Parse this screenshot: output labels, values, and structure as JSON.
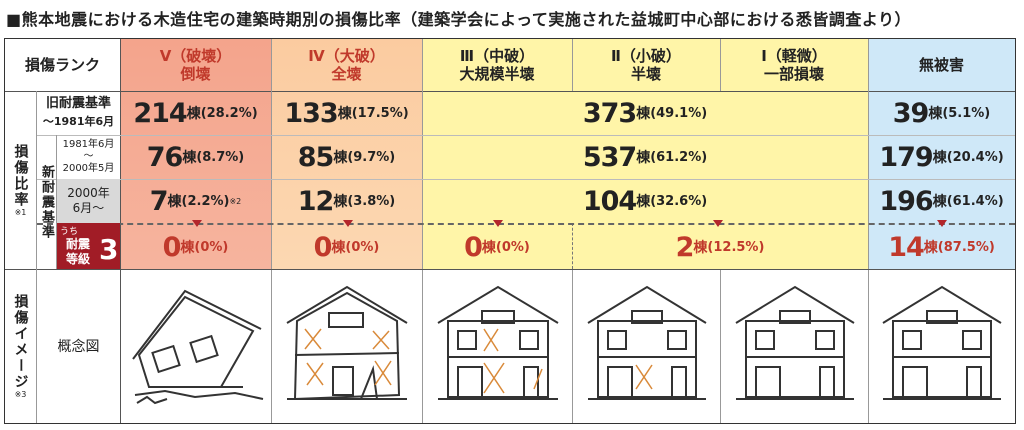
{
  "title": "■熊本地震における木造住宅の建築時期別の損傷比率（建築学会によって実施された益城町中心部における悉皆調査より）",
  "colors": {
    "rank5": "#f4a790",
    "rank4": "#fbd0a5",
    "rank3": "#fff5a8",
    "none": "#cfe8f8",
    "era2000": "#d9d9d9",
    "grade3": "#a11c26"
  },
  "header": {
    "rank_label": "損傷ランク",
    "r5_line1": "Ⅴ（破壊）",
    "r5_line2": "倒壊",
    "r4_line1": "Ⅳ（大破）",
    "r4_line2": "全壊",
    "r3_line1": "Ⅲ（中破）",
    "r3_line2": "大規模半壊",
    "r2_line1": "Ⅱ（小破）",
    "r2_line2": "半壊",
    "r1_line1": "Ⅰ（軽微）",
    "r1_line2": "一部損壊",
    "none": "無被害"
  },
  "side": {
    "ratio_label": "損傷比率",
    "ratio_note": "※1",
    "new_std": "新耐震基準",
    "old_std": "旧耐震基準",
    "old_period": "～1981年6月",
    "mid_period_1": "1981年6月",
    "mid_period_2": "～",
    "mid_period_3": "2000年5月",
    "new_period_1": "2000年",
    "new_period_2": "6月～",
    "grade_prefix": "うち",
    "grade_1": "耐震",
    "grade_2": "等級",
    "grade_num": "3",
    "image_label": "損傷イメージ",
    "image_note": "※3",
    "concept": "概念図"
  },
  "unit": "棟",
  "rows": [
    {
      "v5": "214",
      "p5": "(28.2%)",
      "v4": "133",
      "p4": "(17.5%)",
      "v321": "373",
      "p321": "(49.1%)",
      "vn": "39",
      "pn": "(5.1%)"
    },
    {
      "v5": "76",
      "p5": "(8.7%)",
      "v4": "85",
      "p4": "(9.7%)",
      "v321": "537",
      "p321": "(61.2%)",
      "vn": "179",
      "pn": "(20.4%)"
    },
    {
      "v5": "7",
      "p5": "(2.2%)",
      "n5": "※2",
      "v4": "12",
      "p4": "(3.8%)",
      "v321": "104",
      "p321": "(32.6%)",
      "vn": "196",
      "pn": "(61.4%)"
    },
    {
      "v5": "0",
      "p5": "(0%)",
      "v4": "0",
      "p4": "(0%)",
      "v3": "0",
      "p3": "(0%)",
      "v21": "2",
      "p21": "(12.5%)",
      "vn": "14",
      "pn": "(87.5%)"
    }
  ]
}
